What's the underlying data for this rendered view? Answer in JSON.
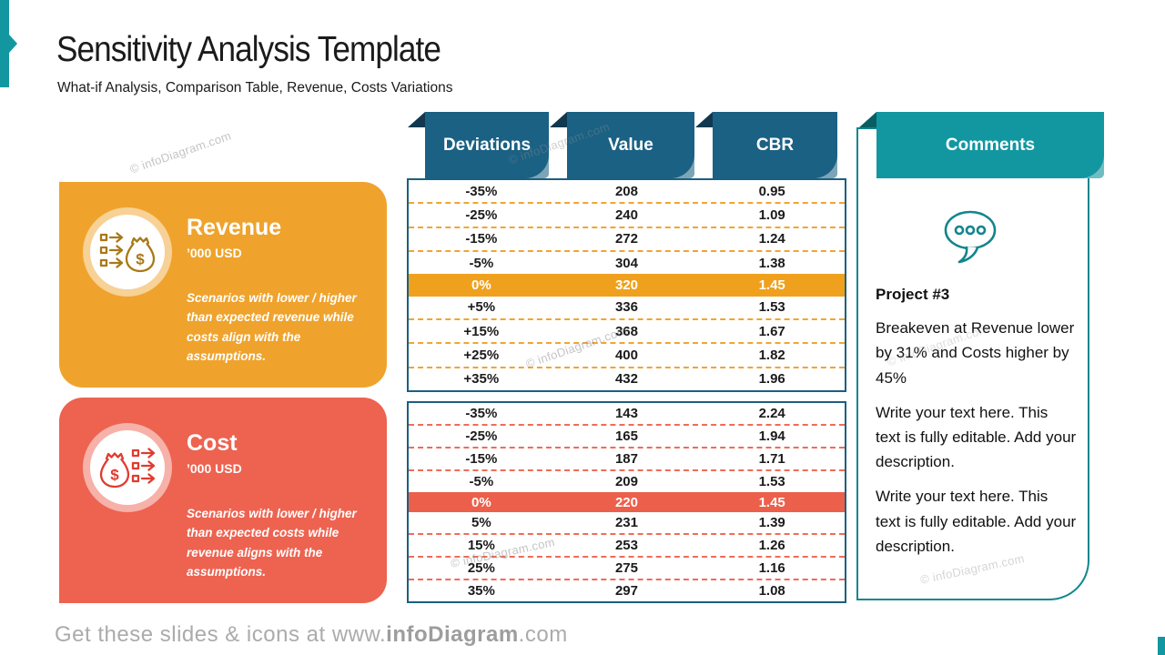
{
  "slide": {
    "title": "Sensitivity Analysis Template",
    "subtitle": "What-if Analysis, Comparison Table, Revenue, Costs Variations",
    "watermark": "© infoDiagram.com",
    "footer": {
      "prefix": "Get these slides & icons at www.",
      "brand": "infoDiagram",
      "suffix": ".com"
    }
  },
  "cards": {
    "revenue": {
      "title": "Revenue",
      "unit": "’000 USD",
      "description": "Scenarios with lower / higher than expected revenue while costs align with the assumptions.",
      "color": "#EFA32C"
    },
    "cost": {
      "title": "Cost",
      "unit": "’000 USD",
      "description": "Scenarios with lower / higher than expected costs while revenue aligns with the assumptions.",
      "color": "#ED6350"
    }
  },
  "tables": {
    "headers": [
      "Deviations",
      "Value",
      "CBR"
    ],
    "revenue": {
      "rows": [
        [
          "-35%",
          "208",
          "0.95"
        ],
        [
          "-25%",
          "240",
          "1.09"
        ],
        [
          "-15%",
          "272",
          "1.24"
        ],
        [
          "-5%",
          "304",
          "1.38"
        ],
        [
          "0%",
          "320",
          "1.45"
        ],
        [
          "+5%",
          "336",
          "1.53"
        ],
        [
          "+15%",
          "368",
          "1.67"
        ],
        [
          "+25%",
          "400",
          "1.82"
        ],
        [
          "+35%",
          "432",
          "1.96"
        ]
      ],
      "highlight_index": 4,
      "highlight_color": "#EFA11E"
    },
    "cost": {
      "rows": [
        [
          "-35%",
          "143",
          "2.24"
        ],
        [
          "-25%",
          "165",
          "1.94"
        ],
        [
          "-15%",
          "187",
          "1.71"
        ],
        [
          "-5%",
          "209",
          "1.53"
        ],
        [
          "0%",
          "220",
          "1.45"
        ],
        [
          "5%",
          "231",
          "1.39"
        ],
        [
          "15%",
          "253",
          "1.26"
        ],
        [
          "25%",
          "275",
          "1.16"
        ],
        [
          "35%",
          "297",
          "1.08"
        ]
      ],
      "highlight_index": 4,
      "highlight_color": "#EC5F4B"
    }
  },
  "comments": {
    "header": "Comments",
    "project": "Project #3",
    "paragraphs": [
      "Breakeven at Revenue lower by 31% and Costs higher by 45%",
      "Write your text here. This text is fully editable. Add your description.",
      "Write your text here. This text is fully editable. Add your description."
    ]
  },
  "colors": {
    "teal": "#1297A1",
    "teal_dark": "#085E64",
    "header_blue": "#1A6184",
    "header_blue_fold": "#11384E",
    "orange": "#EFA32C",
    "orange_highlight": "#EFA11E",
    "coral": "#ED6350",
    "coral_highlight": "#EC5F4B",
    "table_border": "#1C5F7E",
    "footer_gray": "#ABABAB"
  }
}
